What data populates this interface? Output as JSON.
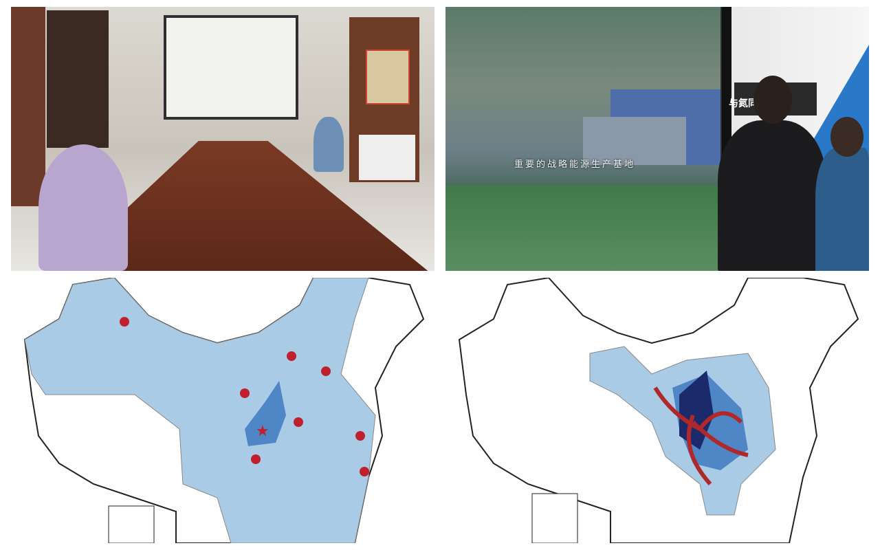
{
  "photos": [
    {
      "id": "meeting-room",
      "screen_content": "presentation slide"
    },
    {
      "id": "exhibition-screen",
      "caption": "重要的战略能源生产基地",
      "wall_sign": "与氮同"
    }
  ],
  "maps": [
    {
      "id": "map-markers",
      "region_color": "#a9cbe6",
      "highlight_color": "#4f86c6",
      "marker_color": "#c0202e"
    },
    {
      "id": "map-arrows",
      "region_color": "#a9cbe6",
      "core_color": "#1a2a6b",
      "mid_color": "#4f86c6",
      "arrow_color": "#b0282a"
    }
  ]
}
